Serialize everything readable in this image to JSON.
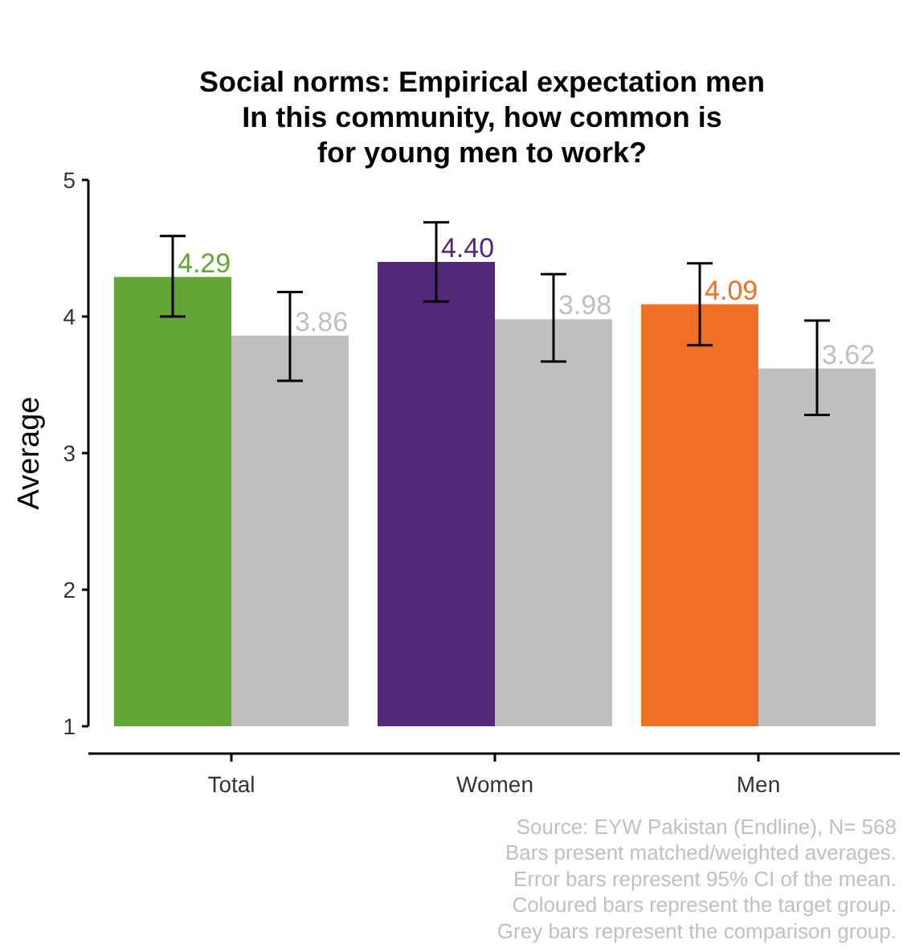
{
  "chart_data": {
    "type": "bar",
    "title": "Social norms: Empirical expectation men\nIn this community, how common is\nfor young men to work?",
    "ylabel": "Average",
    "categories": [
      "Total",
      "Women",
      "Men"
    ],
    "series": [
      {
        "colors": [
          "#62a536",
          "#52287a",
          "#f07026"
        ],
        "values": [
          4.29,
          4.4,
          4.09
        ],
        "value_labels": [
          "4.29",
          "4.40",
          "4.09"
        ],
        "errors": [
          [
            4.0,
            4.59
          ],
          [
            4.11,
            4.69
          ],
          [
            3.79,
            4.39
          ]
        ]
      },
      {
        "color": "#bfbfbf",
        "values": [
          3.86,
          3.98,
          3.62
        ],
        "value_labels": [
          "3.86",
          "3.98",
          "3.62"
        ],
        "errors": [
          [
            3.53,
            4.18
          ],
          [
            3.67,
            4.31
          ],
          [
            3.28,
            3.97
          ]
        ]
      }
    ],
    "ylim": [
      1,
      5
    ],
    "yticks": [
      1,
      2,
      3,
      4,
      5
    ],
    "grid": false,
    "annotations": [
      "Source: EYW Pakistan (Endline), N= 568",
      "Bars present matched/weighted averages.",
      "Error bars represent 95% CI of the mean.",
      "Coloured bars represent the target group.",
      "Grey bars represent the comparison group."
    ]
  }
}
